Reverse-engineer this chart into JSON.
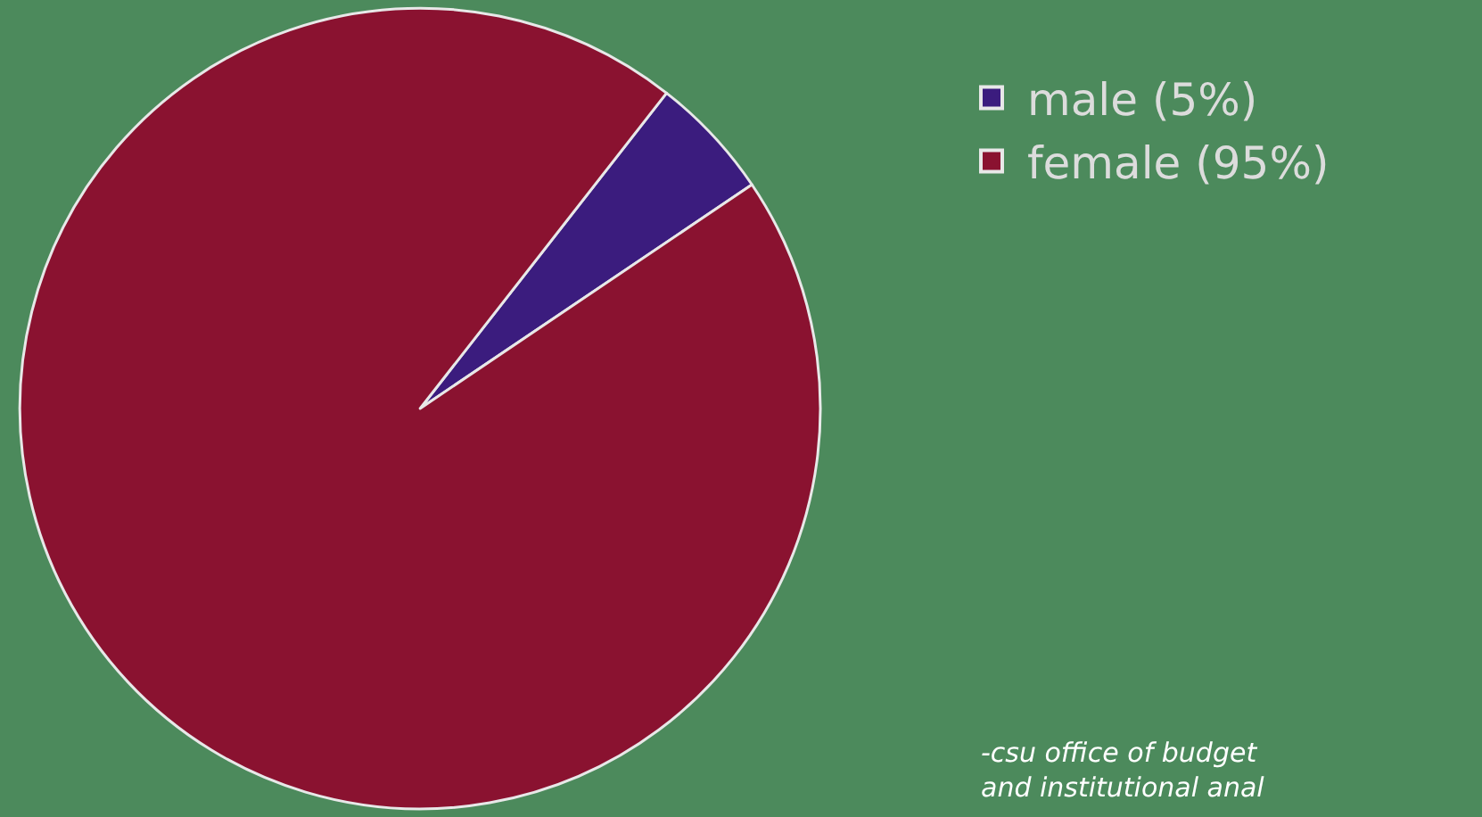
{
  "chart_data": {
    "type": "pie",
    "categories": [
      "male (5%)",
      "female (95%)"
    ],
    "values": [
      5,
      95
    ],
    "colors": [
      "#3b1c7e",
      "#8a1230"
    ],
    "legend": "right",
    "annotations": [
      "-csu office of budget\nand institutional anal"
    ]
  }
}
